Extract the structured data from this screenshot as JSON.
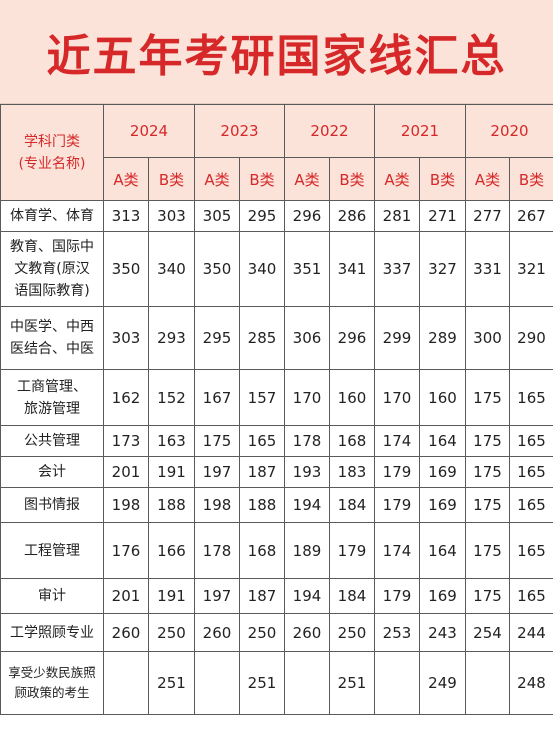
{
  "title": "近五年考研国家线汇总",
  "header": {
    "subject_col": [
      "学科门类",
      "(专业名称)"
    ],
    "years": [
      "2024",
      "2023",
      "2022",
      "2021",
      "2020"
    ],
    "class_a": "A类",
    "class_b": "B类"
  },
  "rows": [
    {
      "subject": [
        "体育学、体育"
      ],
      "values": [
        "313",
        "303",
        "305",
        "295",
        "296",
        "286",
        "281",
        "271",
        "277",
        "267"
      ]
    },
    {
      "subject": [
        "教育、国际中",
        "文教育(原汉",
        "语国际教育)"
      ],
      "values": [
        "350",
        "340",
        "350",
        "340",
        "351",
        "341",
        "337",
        "327",
        "331",
        "321"
      ]
    },
    {
      "subject": [
        "中医学、中西",
        "医结合、中医"
      ],
      "values": [
        "303",
        "293",
        "295",
        "285",
        "306",
        "296",
        "299",
        "289",
        "300",
        "290"
      ]
    },
    {
      "subject": [
        "工商管理、",
        "旅游管理"
      ],
      "values": [
        "162",
        "152",
        "167",
        "157",
        "170",
        "160",
        "170",
        "160",
        "175",
        "165"
      ]
    },
    {
      "subject": [
        "公共管理"
      ],
      "values": [
        "173",
        "163",
        "175",
        "165",
        "178",
        "168",
        "174",
        "164",
        "175",
        "165"
      ]
    },
    {
      "subject": [
        "会计"
      ],
      "values": [
        "201",
        "191",
        "197",
        "187",
        "193",
        "183",
        "179",
        "169",
        "175",
        "165"
      ]
    },
    {
      "subject": [
        "图书情报"
      ],
      "values": [
        "198",
        "188",
        "198",
        "188",
        "194",
        "184",
        "179",
        "169",
        "175",
        "165"
      ]
    },
    {
      "subject": [
        "工程管理"
      ],
      "values": [
        "176",
        "166",
        "178",
        "168",
        "189",
        "179",
        "174",
        "164",
        "175",
        "165"
      ]
    },
    {
      "subject": [
        "审计"
      ],
      "values": [
        "201",
        "191",
        "197",
        "187",
        "194",
        "184",
        "179",
        "169",
        "175",
        "165"
      ]
    },
    {
      "subject": [
        "工学照顾专业"
      ],
      "values": [
        "260",
        "250",
        "260",
        "250",
        "260",
        "250",
        "253",
        "243",
        "254",
        "244"
      ]
    },
    {
      "subject": [
        "享受少数民族照",
        "顾政策的考生"
      ],
      "small": true,
      "values": [
        "",
        "251",
        "",
        "251",
        "",
        "251",
        "",
        "249",
        "",
        "248"
      ]
    }
  ]
}
